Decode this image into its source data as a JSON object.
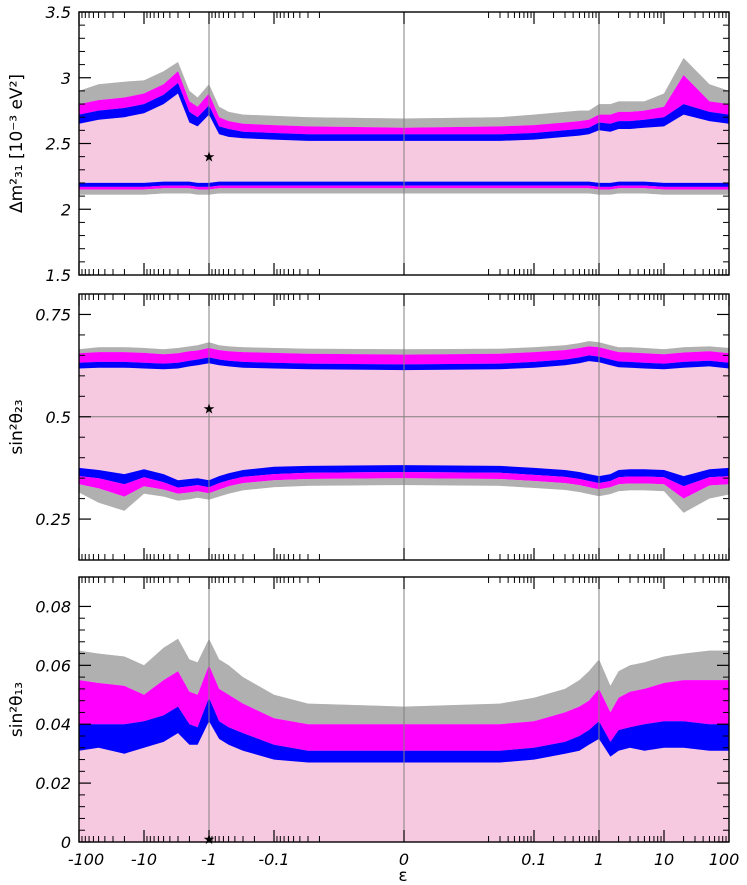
{
  "figure": {
    "xlabel": "ε"
  },
  "colors": {
    "light": "#f7c9e1",
    "magenta": "#ff00ff",
    "blue": "#0000ff",
    "gray": "#b0b0b0",
    "grid": "#808080"
  },
  "x_ticks": [
    "-100",
    "-10",
    "-1",
    "-0.1",
    "0",
    "0.1",
    "1",
    "10",
    "100"
  ],
  "chart_data": [
    {
      "type": "area",
      "ylabel": "Δm²₃₁ [10⁻³ eV²]",
      "ylim": [
        1.5,
        3.5
      ],
      "y_ticks": [
        "1.5",
        "2",
        "2.5",
        "3",
        "3.5"
      ],
      "x_grid": [
        "-1",
        "0",
        "1"
      ],
      "marker": {
        "x": -1,
        "y": 2.4,
        "symbol": "★"
      },
      "x": [
        -100,
        -50,
        -20,
        -10,
        -5,
        -3,
        -2,
        -1.5,
        -1,
        -0.7,
        -0.5,
        -0.3,
        -0.1,
        -0.03,
        0,
        0.03,
        0.1,
        0.3,
        0.5,
        0.7,
        1,
        1.5,
        2,
        3,
        5,
        10,
        20,
        50,
        100
      ],
      "bands": {
        "upper": {
          "gray_top": [
            2.9,
            2.95,
            2.97,
            2.98,
            3.05,
            3.12,
            2.9,
            2.85,
            2.95,
            2.78,
            2.74,
            2.72,
            2.71,
            2.7,
            2.69,
            2.7,
            2.72,
            2.74,
            2.75,
            2.75,
            2.8,
            2.8,
            2.82,
            2.82,
            2.82,
            2.88,
            3.15,
            2.95,
            2.9
          ],
          "magenta_top": [
            2.8,
            2.83,
            2.85,
            2.88,
            2.95,
            3.05,
            2.82,
            2.78,
            2.88,
            2.7,
            2.67,
            2.65,
            2.64,
            2.63,
            2.62,
            2.63,
            2.64,
            2.66,
            2.67,
            2.68,
            2.72,
            2.72,
            2.74,
            2.74,
            2.75,
            2.78,
            3.02,
            2.82,
            2.8
          ],
          "blue_top": [
            2.72,
            2.75,
            2.77,
            2.8,
            2.87,
            2.96,
            2.74,
            2.7,
            2.79,
            2.63,
            2.61,
            2.59,
            2.58,
            2.57,
            2.57,
            2.57,
            2.58,
            2.6,
            2.61,
            2.62,
            2.66,
            2.65,
            2.67,
            2.67,
            2.68,
            2.7,
            2.8,
            2.74,
            2.72
          ],
          "blue_bottom": [
            2.65,
            2.68,
            2.7,
            2.73,
            2.8,
            2.88,
            2.66,
            2.63,
            2.72,
            2.57,
            2.55,
            2.54,
            2.53,
            2.52,
            2.52,
            2.52,
            2.53,
            2.55,
            2.56,
            2.57,
            2.6,
            2.59,
            2.61,
            2.61,
            2.62,
            2.63,
            2.72,
            2.67,
            2.65
          ]
        },
        "lower": {
          "blue_top": [
            2.2,
            2.2,
            2.2,
            2.2,
            2.21,
            2.21,
            2.21,
            2.2,
            2.2,
            2.21,
            2.21,
            2.21,
            2.21,
            2.21,
            2.21,
            2.21,
            2.21,
            2.21,
            2.21,
            2.21,
            2.2,
            2.2,
            2.21,
            2.21,
            2.21,
            2.2,
            2.2,
            2.2,
            2.2
          ],
          "blue_bottom": [
            2.17,
            2.17,
            2.17,
            2.17,
            2.18,
            2.18,
            2.18,
            2.17,
            2.17,
            2.18,
            2.18,
            2.18,
            2.18,
            2.18,
            2.18,
            2.18,
            2.18,
            2.18,
            2.18,
            2.18,
            2.17,
            2.17,
            2.18,
            2.18,
            2.18,
            2.17,
            2.17,
            2.17,
            2.17
          ],
          "magenta_bottom": [
            2.15,
            2.15,
            2.15,
            2.15,
            2.16,
            2.16,
            2.16,
            2.15,
            2.15,
            2.16,
            2.16,
            2.16,
            2.16,
            2.16,
            2.16,
            2.16,
            2.16,
            2.16,
            2.16,
            2.16,
            2.15,
            2.15,
            2.16,
            2.16,
            2.16,
            2.15,
            2.15,
            2.15,
            2.15
          ],
          "gray_bottom": [
            2.11,
            2.11,
            2.11,
            2.11,
            2.12,
            2.12,
            2.12,
            2.11,
            2.11,
            2.12,
            2.12,
            2.12,
            2.12,
            2.12,
            2.12,
            2.12,
            2.12,
            2.12,
            2.12,
            2.12,
            2.11,
            2.11,
            2.12,
            2.12,
            2.12,
            2.11,
            2.11,
            2.11,
            2.11
          ]
        }
      }
    },
    {
      "type": "area",
      "ylabel": "sin²θ₂₃",
      "ylim": [
        0.15,
        0.8
      ],
      "y_ticks": [
        "0.25",
        "0.5",
        "0.75"
      ],
      "y_ticks_values": [
        0.25,
        0.5,
        0.75
      ],
      "x_grid": [
        "-1",
        "0",
        "1"
      ],
      "y_grid": [
        0.5
      ],
      "marker": {
        "x": -1,
        "y": 0.52,
        "symbol": "★"
      },
      "x": [
        -100,
        -50,
        -20,
        -10,
        -5,
        -3,
        -2,
        -1.5,
        -1,
        -0.7,
        -0.5,
        -0.3,
        -0.1,
        -0.03,
        0,
        0.03,
        0.1,
        0.3,
        0.5,
        0.7,
        1,
        1.5,
        2,
        3,
        5,
        10,
        20,
        50,
        100
      ],
      "bands": {
        "upper": {
          "gray_top": [
            0.665,
            0.67,
            0.67,
            0.668,
            0.665,
            0.668,
            0.672,
            0.675,
            0.682,
            0.675,
            0.672,
            0.67,
            0.668,
            0.666,
            0.665,
            0.666,
            0.67,
            0.675,
            0.68,
            0.685,
            0.682,
            0.675,
            0.67,
            0.67,
            0.668,
            0.665,
            0.67,
            0.672,
            0.668
          ],
          "magenta_top": [
            0.655,
            0.658,
            0.658,
            0.656,
            0.653,
            0.655,
            0.66,
            0.662,
            0.668,
            0.663,
            0.66,
            0.658,
            0.656,
            0.654,
            0.652,
            0.654,
            0.658,
            0.663,
            0.668,
            0.672,
            0.67,
            0.663,
            0.658,
            0.657,
            0.655,
            0.653,
            0.657,
            0.66,
            0.655
          ],
          "blue_top": [
            0.632,
            0.634,
            0.634,
            0.632,
            0.63,
            0.632,
            0.637,
            0.64,
            0.645,
            0.64,
            0.637,
            0.634,
            0.632,
            0.63,
            0.628,
            0.63,
            0.634,
            0.64,
            0.645,
            0.65,
            0.647,
            0.64,
            0.635,
            0.634,
            0.632,
            0.63,
            0.634,
            0.637,
            0.632
          ],
          "blue_bottom": [
            0.618,
            0.62,
            0.62,
            0.618,
            0.616,
            0.618,
            0.623,
            0.626,
            0.631,
            0.626,
            0.623,
            0.62,
            0.618,
            0.616,
            0.614,
            0.616,
            0.62,
            0.626,
            0.631,
            0.636,
            0.633,
            0.626,
            0.621,
            0.62,
            0.618,
            0.616,
            0.62,
            0.623,
            0.618
          ]
        },
        "lower": {
          "blue_top": [
            0.375,
            0.37,
            0.36,
            0.372,
            0.36,
            0.345,
            0.348,
            0.35,
            0.345,
            0.355,
            0.362,
            0.37,
            0.378,
            0.38,
            0.382,
            0.38,
            0.375,
            0.37,
            0.365,
            0.36,
            0.355,
            0.36,
            0.37,
            0.372,
            0.372,
            0.37,
            0.355,
            0.372,
            0.375
          ],
          "blue_bottom": [
            0.355,
            0.35,
            0.335,
            0.352,
            0.34,
            0.327,
            0.33,
            0.333,
            0.328,
            0.338,
            0.345,
            0.353,
            0.36,
            0.363,
            0.365,
            0.363,
            0.358,
            0.353,
            0.348,
            0.343,
            0.338,
            0.343,
            0.352,
            0.354,
            0.354,
            0.352,
            0.33,
            0.352,
            0.355
          ],
          "magenta_bottom": [
            0.335,
            0.325,
            0.305,
            0.33,
            0.322,
            0.312,
            0.315,
            0.318,
            0.313,
            0.322,
            0.33,
            0.338,
            0.345,
            0.348,
            0.35,
            0.348,
            0.343,
            0.338,
            0.333,
            0.328,
            0.323,
            0.328,
            0.335,
            0.337,
            0.337,
            0.335,
            0.3,
            0.332,
            0.335
          ],
          "gray_bottom": [
            0.315,
            0.29,
            0.27,
            0.312,
            0.305,
            0.295,
            0.298,
            0.302,
            0.297,
            0.305,
            0.312,
            0.32,
            0.328,
            0.331,
            0.333,
            0.331,
            0.326,
            0.321,
            0.316,
            0.311,
            0.306,
            0.311,
            0.318,
            0.32,
            0.32,
            0.318,
            0.265,
            0.3,
            0.31
          ]
        }
      }
    },
    {
      "type": "area",
      "ylabel": "sin²θ₁₃",
      "ylim": [
        0,
        0.09
      ],
      "y_ticks": [
        "0",
        "0.02",
        "0.04",
        "0.06",
        "0.08"
      ],
      "y_ticks_values": [
        0,
        0.02,
        0.04,
        0.06,
        0.08
      ],
      "x_grid": [
        "-1",
        "0",
        "1"
      ],
      "marker": {
        "x": -1,
        "y": 0.001,
        "symbol": "★"
      },
      "x": [
        -100,
        -50,
        -20,
        -10,
        -5,
        -3,
        -2,
        -1.5,
        -1,
        -0.7,
        -0.5,
        -0.3,
        -0.1,
        -0.03,
        0,
        0.03,
        0.1,
        0.3,
        0.5,
        0.7,
        1,
        1.5,
        2,
        3,
        5,
        10,
        20,
        50,
        100
      ],
      "bands": {
        "upper": {
          "gray_top": [
            0.065,
            0.064,
            0.063,
            0.06,
            0.066,
            0.069,
            0.062,
            0.061,
            0.069,
            0.062,
            0.06,
            0.056,
            0.05,
            0.047,
            0.046,
            0.047,
            0.049,
            0.052,
            0.055,
            0.058,
            0.062,
            0.053,
            0.058,
            0.06,
            0.061,
            0.063,
            0.064,
            0.065,
            0.065
          ],
          "magenta_top": [
            0.055,
            0.054,
            0.053,
            0.05,
            0.055,
            0.058,
            0.051,
            0.05,
            0.06,
            0.052,
            0.05,
            0.047,
            0.042,
            0.04,
            0.04,
            0.04,
            0.041,
            0.044,
            0.046,
            0.048,
            0.052,
            0.044,
            0.049,
            0.051,
            0.052,
            0.054,
            0.055,
            0.055,
            0.055
          ],
          "blue_top": [
            0.04,
            0.04,
            0.04,
            0.041,
            0.043,
            0.046,
            0.04,
            0.039,
            0.049,
            0.041,
            0.039,
            0.037,
            0.033,
            0.031,
            0.031,
            0.031,
            0.032,
            0.034,
            0.036,
            0.038,
            0.041,
            0.034,
            0.038,
            0.039,
            0.04,
            0.041,
            0.041,
            0.04,
            0.04
          ],
          "blue_bottom": [
            0.031,
            0.032,
            0.03,
            0.032,
            0.034,
            0.037,
            0.033,
            0.033,
            0.041,
            0.035,
            0.033,
            0.031,
            0.028,
            0.027,
            0.027,
            0.027,
            0.028,
            0.03,
            0.031,
            0.033,
            0.035,
            0.029,
            0.031,
            0.032,
            0.031,
            0.032,
            0.032,
            0.031,
            0.031
          ]
        }
      }
    }
  ]
}
